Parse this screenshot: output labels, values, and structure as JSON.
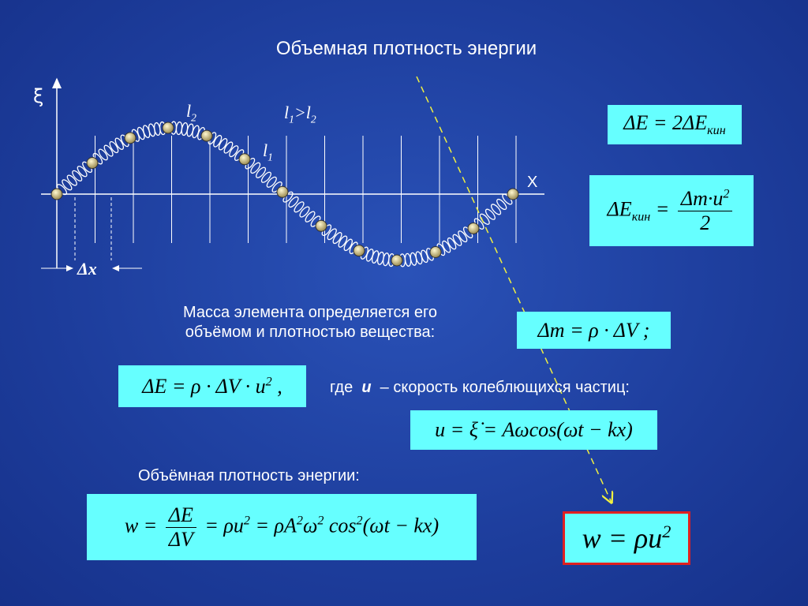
{
  "title": "Объемная плотность энергии",
  "diagram": {
    "xi": "ξ",
    "x": "X",
    "l2": [
      "l",
      {
        "sub": "2"
      }
    ],
    "l1_gt_l2": [
      "l",
      {
        "sub": "1"
      },
      ">l",
      {
        "sub": "2"
      }
    ],
    "l1": [
      "l",
      {
        "sub": "1"
      }
    ],
    "dx": "Δx"
  },
  "formulas": {
    "dE": [
      "ΔE = 2ΔE",
      {
        "sub": "кин"
      }
    ],
    "dEkin": [
      "ΔE",
      {
        "sub": "кин"
      },
      " = ",
      {
        "num": [
          "Δm·u",
          {
            "sup": "2"
          }
        ],
        "den": [
          "2"
        ]
      }
    ],
    "dm": [
      "Δm = ρ · ΔV ;"
    ],
    "dE2": [
      "ΔE = ρ · ΔV · u",
      {
        "sup": "2"
      },
      " ,"
    ],
    "u": [
      "u = ξ̇ = Aωcos(ωt − kx)"
    ],
    "w": [
      "w = ",
      {
        "num": [
          "ΔE"
        ],
        "den": [
          "ΔV"
        ]
      },
      " = ρu",
      {
        "sup": "2"
      },
      " = ρA",
      {
        "sup": "2"
      },
      "ω",
      {
        "sup": "2"
      },
      " cos",
      {
        "sup": "2"
      },
      "(ωt − kx)"
    ],
    "w_final": [
      "w = ρu",
      {
        "sup": "2"
      }
    ]
  },
  "text": {
    "mass_line1": "Масса элемента определяется его",
    "mass_line2": "объёмом и плотностью вещества:",
    "where": "где",
    "u": "u",
    "speed": "– скорость колеблющихся частиц:",
    "density": "Объёмная плотность энергии:"
  }
}
